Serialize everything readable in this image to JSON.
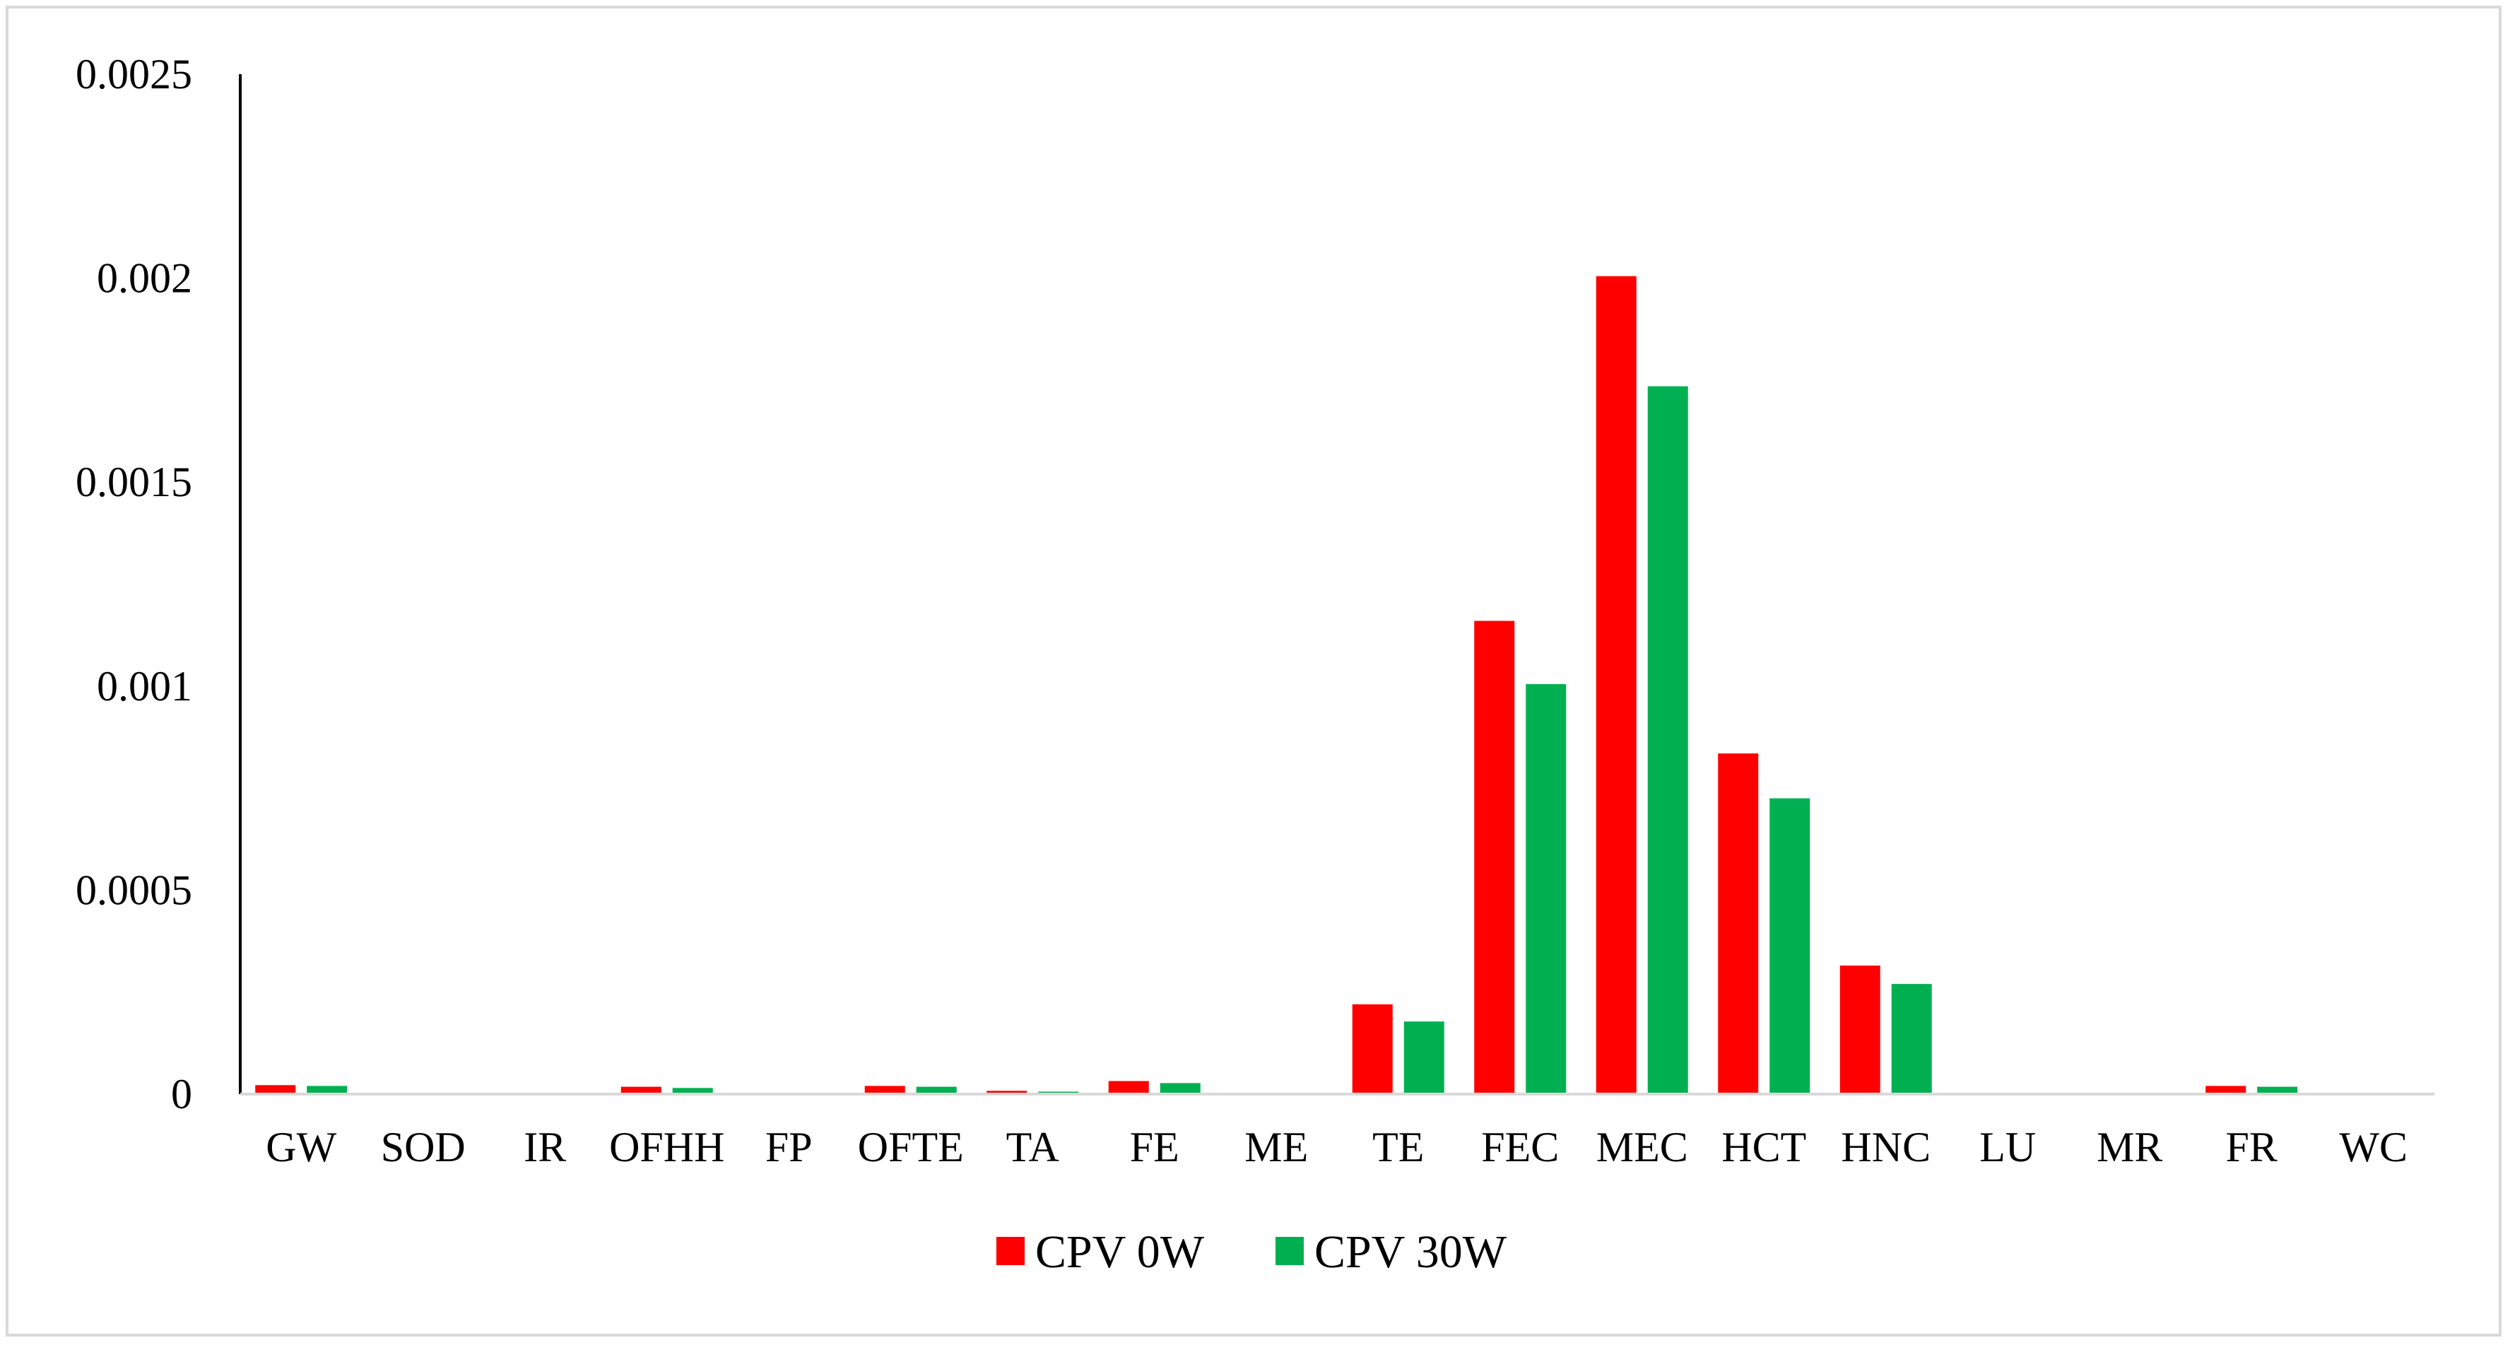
{
  "chart_data": {
    "type": "bar",
    "title": "",
    "xlabel": "",
    "ylabel": "",
    "categories": [
      "GW",
      "SOD",
      "IR",
      "OFHH",
      "FP",
      "OFTE",
      "TA",
      "FE",
      "ME",
      "TE",
      "FEC",
      "MEC",
      "HCT",
      "HNC",
      "LU",
      "MR",
      "FR",
      "WC"
    ],
    "series": [
      {
        "name": "CPV 0W",
        "color": "#ff0000",
        "values": [
          2.2e-05,
          0.0,
          0.0,
          1.8e-05,
          0.0,
          2e-05,
          8e-06,
          3.2e-05,
          0.0,
          0.00022,
          0.00116,
          0.002005,
          0.000835,
          0.000315,
          0.0,
          0.0,
          2e-05,
          0.0
        ]
      },
      {
        "name": "CPV 30W",
        "color": "#00b050",
        "values": [
          2e-05,
          0.0,
          0.0,
          1.5e-05,
          0.0,
          1.8e-05,
          6e-06,
          2.7e-05,
          0.0,
          0.000178,
          0.001005,
          0.001735,
          0.000725,
          0.00027,
          0.0,
          0.0,
          1.8e-05,
          0.0
        ]
      }
    ],
    "ylim": [
      0,
      0.0025
    ],
    "yticks": [
      "0",
      "0.0005",
      "0.001",
      "0.0015",
      "0.002",
      "0.0025"
    ],
    "grid": false,
    "legend_position": "bottom"
  }
}
